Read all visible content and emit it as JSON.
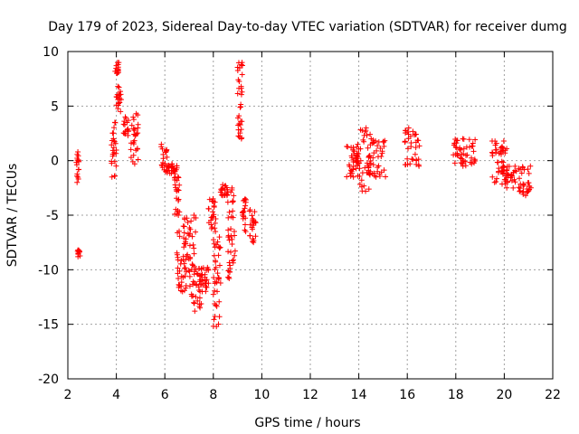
{
  "chart_data": {
    "type": "scatter",
    "title": "Day 179 of 2023, Sidereal Day-to-day VTEC variation (SDTVAR) for receiver dumg",
    "xlabel": "GPS time / hours",
    "ylabel": "SDTVAR / TECUs",
    "xlim": [
      2,
      22
    ],
    "ylim": [
      -20,
      10
    ],
    "xticks": [
      "2",
      "4",
      "6",
      "8",
      "10",
      "12",
      "14",
      "16",
      "18",
      "20",
      "22"
    ],
    "yticks": [
      "10",
      "5",
      "0",
      "-5",
      "-10",
      "-15",
      "-20"
    ],
    "grid": true,
    "marker": "+",
    "color": "#ff0000",
    "series": [
      {
        "name": "SDTVAR",
        "clusters": [
          {
            "x": [
              2.35,
              2.45
            ],
            "y": [
              -2.0,
              0.8
            ]
          },
          {
            "x": [
              2.4,
              2.5
            ],
            "y": [
              -8.8,
              -8.2
            ]
          },
          {
            "x": [
              3.8,
              4.0
            ],
            "y": [
              -1.5,
              3.5
            ]
          },
          {
            "x": [
              3.95,
              4.1
            ],
            "y": [
              8.0,
              9.0
            ]
          },
          {
            "x": [
              4.0,
              4.2
            ],
            "y": [
              4.5,
              6.8
            ]
          },
          {
            "x": [
              4.3,
              4.5
            ],
            "y": [
              2.3,
              4.0
            ]
          },
          {
            "x": [
              4.6,
              4.9
            ],
            "y": [
              -0.3,
              4.3
            ]
          },
          {
            "x": [
              5.85,
              6.1
            ],
            "y": [
              -1.0,
              1.5
            ]
          },
          {
            "x": [
              6.1,
              6.5
            ],
            "y": [
              -1.2,
              -0.3
            ]
          },
          {
            "x": [
              6.4,
              6.6
            ],
            "y": [
              -5.0,
              -1.5
            ]
          },
          {
            "x": [
              6.5,
              6.9
            ],
            "y": [
              -12.0,
              -6.0
            ]
          },
          {
            "x": [
              6.8,
              7.3
            ],
            "y": [
              -11.5,
              -5.0
            ]
          },
          {
            "x": [
              7.1,
              7.5
            ],
            "y": [
              -13.8,
              -9.5
            ]
          },
          {
            "x": [
              7.4,
              7.8
            ],
            "y": [
              -12.0,
              -9.8
            ]
          },
          {
            "x": [
              7.8,
              8.1
            ],
            "y": [
              -6.5,
              -3.5
            ]
          },
          {
            "x": [
              8.0,
              8.3
            ],
            "y": [
              -15.2,
              -7.0
            ]
          },
          {
            "x": [
              8.3,
              8.6
            ],
            "y": [
              -3.2,
              -2.2
            ]
          },
          {
            "x": [
              8.6,
              8.9
            ],
            "y": [
              -10.8,
              -2.5
            ]
          },
          {
            "x": [
              9.0,
              9.2
            ],
            "y": [
              2.0,
              9.0
            ]
          },
          {
            "x": [
              9.2,
              9.35
            ],
            "y": [
              -6.5,
              -3.5
            ]
          },
          {
            "x": [
              9.5,
              9.75
            ],
            "y": [
              -7.5,
              -4.5
            ]
          },
          {
            "x": [
              13.5,
              14.0
            ],
            "y": [
              -1.5,
              1.5
            ]
          },
          {
            "x": [
              13.9,
              14.5
            ],
            "y": [
              -2.8,
              3.0
            ]
          },
          {
            "x": [
              14.4,
              15.1
            ],
            "y": [
              -1.5,
              2.0
            ]
          },
          {
            "x": [
              15.9,
              16.5
            ],
            "y": [
              -0.5,
              3.0
            ]
          },
          {
            "x": [
              17.9,
              18.8
            ],
            "y": [
              -0.5,
              2.0
            ]
          },
          {
            "x": [
              19.5,
              20.1
            ],
            "y": [
              -2.0,
              1.8
            ]
          },
          {
            "x": [
              19.9,
              20.5
            ],
            "y": [
              -2.5,
              -0.5
            ]
          },
          {
            "x": [
              20.6,
              21.1
            ],
            "y": [
              -3.2,
              -0.5
            ]
          }
        ]
      }
    ]
  }
}
